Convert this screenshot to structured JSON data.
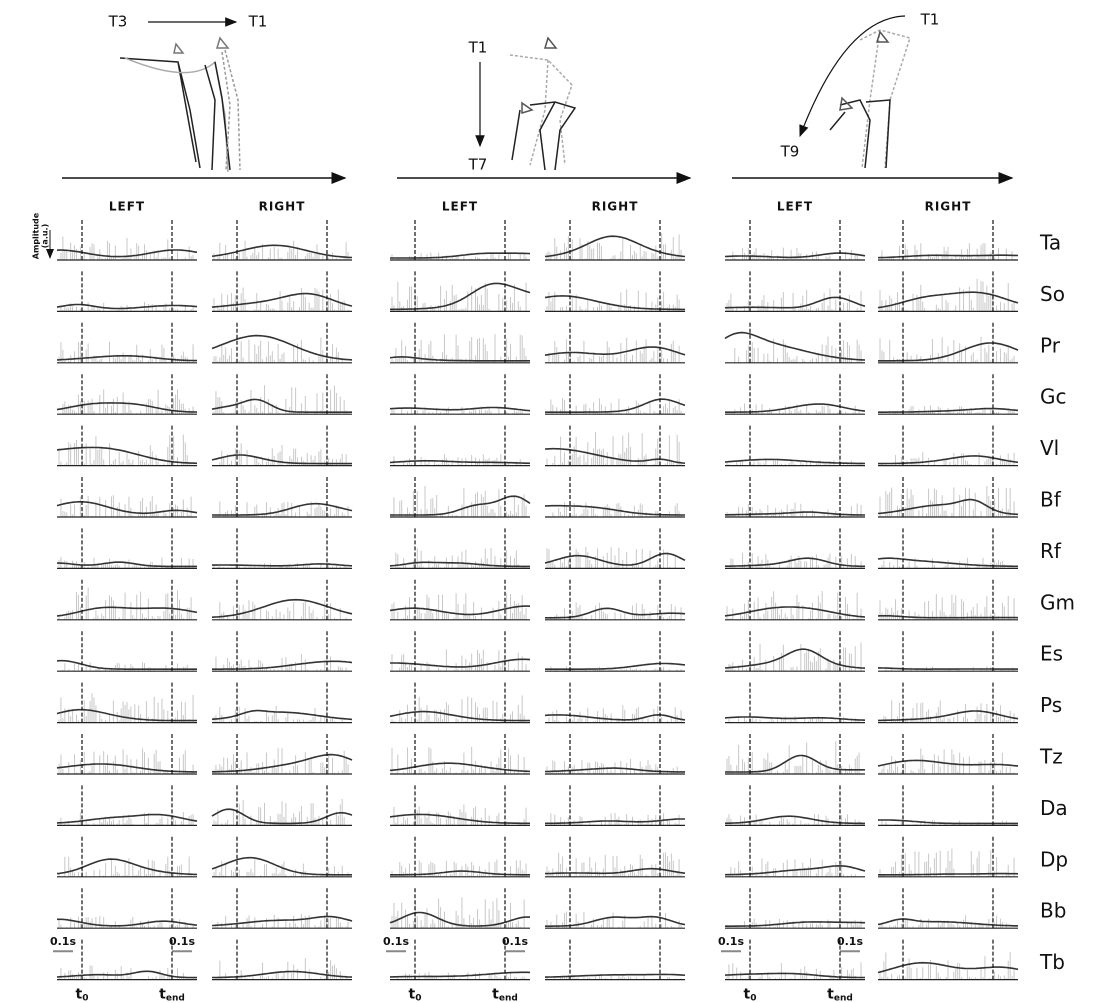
{
  "panels": [
    {
      "transition": {
        "from": "T3",
        "to": "T1"
      },
      "columns": [
        "LEFT",
        "RIGHT"
      ]
    },
    {
      "transition": {
        "from": "T1",
        "to": "T7"
      },
      "columns": [
        "LEFT",
        "RIGHT"
      ]
    },
    {
      "transition": {
        "from": "T1",
        "to": "T9"
      },
      "columns": [
        "LEFT",
        "RIGHT"
      ]
    }
  ],
  "muscles": [
    "Ta",
    "So",
    "Pr",
    "Gc",
    "Vl",
    "Bf",
    "Rf",
    "Gm",
    "Es",
    "Ps",
    "Tz",
    "Da",
    "Dp",
    "Bb",
    "Tb"
  ],
  "amplitude_label": [
    "Amplitude",
    "(a.u.)"
  ],
  "scale_label": "0.1s",
  "time_markers": {
    "start": {
      "base": "t",
      "sub": "0"
    },
    "end": {
      "base": "t",
      "sub": "end"
    }
  }
}
